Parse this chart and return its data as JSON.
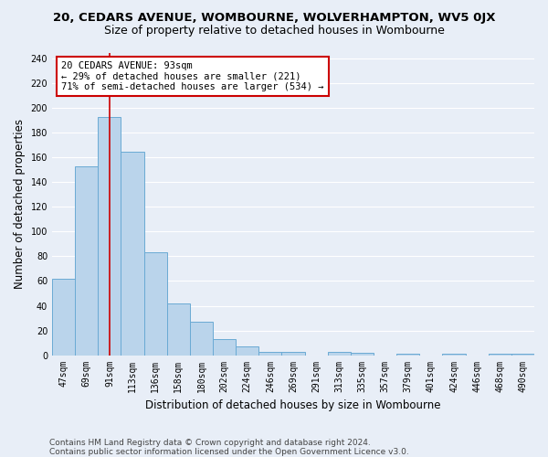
{
  "title_line1": "20, CEDARS AVENUE, WOMBOURNE, WOLVERHAMPTON, WV5 0JX",
  "title_line2": "Size of property relative to detached houses in Wombourne",
  "xlabel": "Distribution of detached houses by size in Wombourne",
  "ylabel": "Number of detached properties",
  "categories": [
    "47sqm",
    "69sqm",
    "91sqm",
    "113sqm",
    "136sqm",
    "158sqm",
    "180sqm",
    "202sqm",
    "224sqm",
    "246sqm",
    "269sqm",
    "291sqm",
    "313sqm",
    "335sqm",
    "357sqm",
    "379sqm",
    "401sqm",
    "424sqm",
    "446sqm",
    "468sqm",
    "490sqm"
  ],
  "values": [
    62,
    153,
    193,
    165,
    83,
    42,
    27,
    13,
    7,
    3,
    3,
    0,
    3,
    2,
    0,
    1,
    0,
    1,
    0,
    1,
    1
  ],
  "bar_color": "#bad4eb",
  "bar_edgecolor": "#6aaad4",
  "redline_index": 2,
  "annotation_line1": "20 CEDARS AVENUE: 93sqm",
  "annotation_line2": "← 29% of detached houses are smaller (221)",
  "annotation_line3": "71% of semi-detached houses are larger (534) →",
  "annotation_box_color": "#ffffff",
  "annotation_box_edgecolor": "#cc0000",
  "redline_color": "#cc0000",
  "ylim": [
    0,
    245
  ],
  "yticks": [
    0,
    20,
    40,
    60,
    80,
    100,
    120,
    140,
    160,
    180,
    200,
    220,
    240
  ],
  "background_color": "#e8eef7",
  "footer_line1": "Contains HM Land Registry data © Crown copyright and database right 2024.",
  "footer_line2": "Contains public sector information licensed under the Open Government Licence v3.0.",
  "grid_color": "#ffffff",
  "title_fontsize": 9.5,
  "subtitle_fontsize": 9,
  "axis_label_fontsize": 8.5,
  "tick_fontsize": 7,
  "annotation_fontsize": 7.5,
  "footer_fontsize": 6.5
}
